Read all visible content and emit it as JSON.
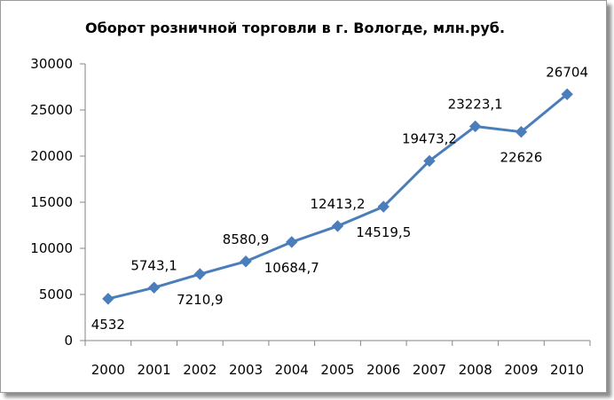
{
  "chart_data": {
    "type": "line",
    "title": "Оборот розничной торговли  в г. Вологде, млн.руб.",
    "xlabel": "",
    "ylabel": "",
    "categories": [
      "2000",
      "2001",
      "2002",
      "2003",
      "2004",
      "2005",
      "2006",
      "2007",
      "2008",
      "2009",
      "2010"
    ],
    "values": [
      4532,
      5743.1,
      7210.9,
      8580.9,
      10684.7,
      12413.2,
      14519.5,
      19473.2,
      23223.1,
      22626,
      26704
    ],
    "data_labels": [
      "4532",
      "5743,1",
      "7210,9",
      "8580,9",
      "10684,7",
      "12413,2",
      "14519,5",
      "19473,2",
      "23223,1",
      "22626",
      "26704"
    ],
    "label_positions": [
      "below",
      "above",
      "below",
      "above",
      "below",
      "above",
      "below",
      "above",
      "above",
      "below",
      "above"
    ],
    "ylim": [
      0,
      30000
    ],
    "y_ticks": [
      "0",
      "5000",
      "10000",
      "15000",
      "20000",
      "25000",
      "30000"
    ],
    "y_tick_values": [
      0,
      5000,
      10000,
      15000,
      20000,
      25000,
      30000
    ],
    "grid": false,
    "legend": "none",
    "marker": "diamond",
    "line_color": "#4a7ebb",
    "axis_color": "#868686"
  }
}
